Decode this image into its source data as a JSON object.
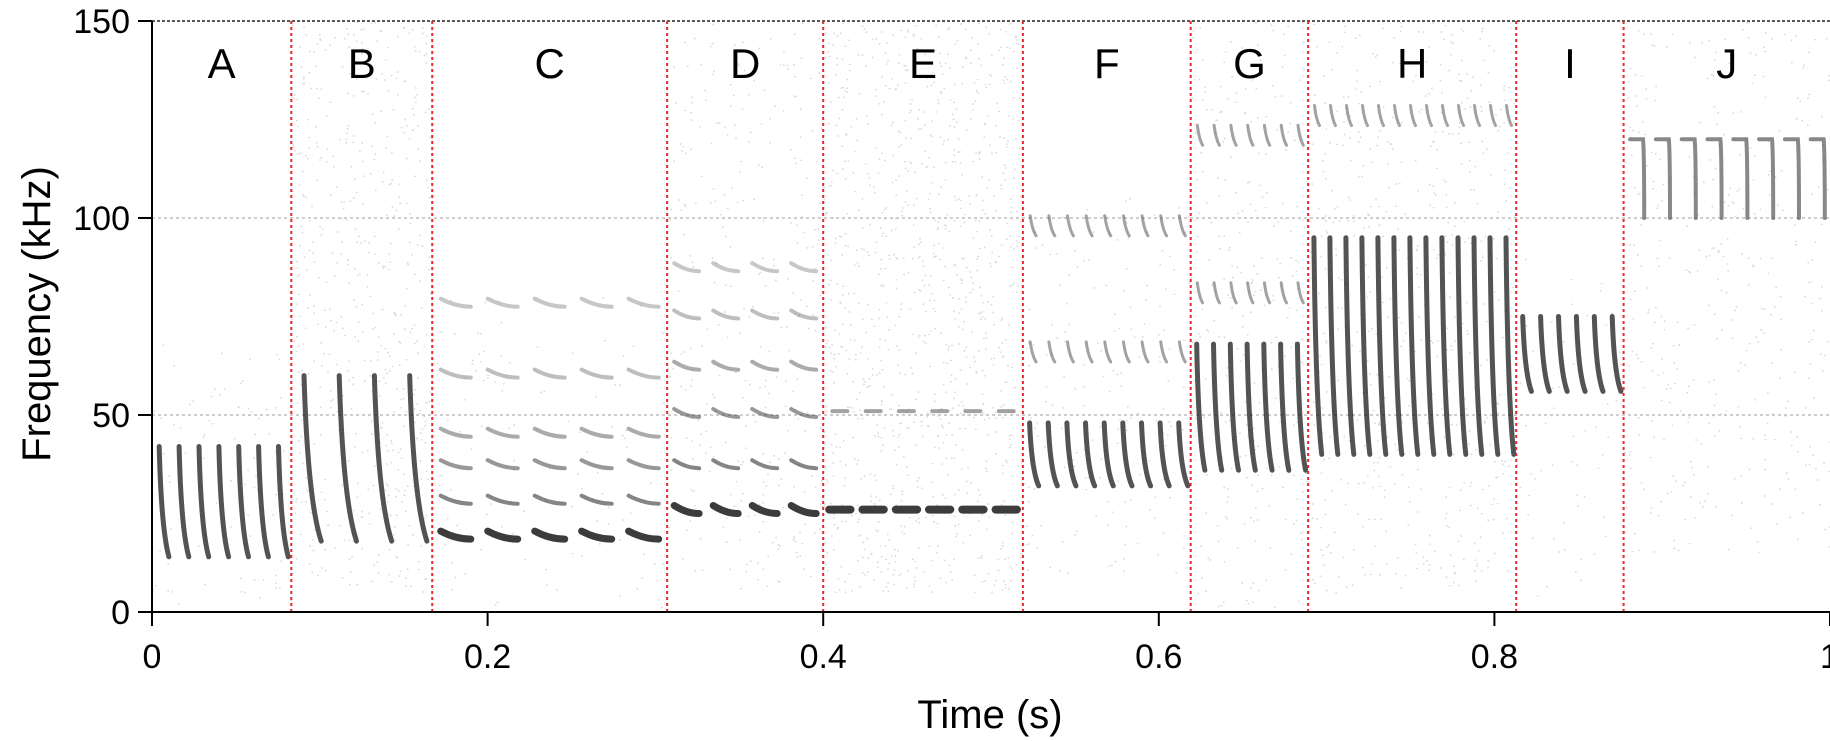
{
  "chart_data": {
    "type": "spectrogram",
    "xlabel": "Time (s)",
    "ylabel": "Frequency (kHz)",
    "xlim": [
      0,
      1
    ],
    "ylim": [
      0,
      150
    ],
    "x_ticks": [
      0,
      0.2,
      0.4,
      0.6,
      0.8,
      1
    ],
    "x_tick_labels": [
      "0",
      "0.2",
      "0.4",
      "0.6",
      "0.8",
      "1"
    ],
    "y_ticks": [
      0,
      50,
      100,
      150
    ],
    "y_tick_labels": [
      "0",
      "50",
      "100",
      "150"
    ],
    "grid_y": [
      50,
      100
    ],
    "colors": {
      "boundary": "#e8262b",
      "grid": "#bdbdbd",
      "ink": "#1a1a1a"
    },
    "segments": [
      {
        "label": "A",
        "start": 0.0,
        "end": 0.083,
        "syllables": 7,
        "f_low": 14,
        "f_high": 42,
        "mode": "fm-down",
        "harmonics": [],
        "noise": {
          "lo": 0,
          "hi": 68,
          "density": 0.05
        }
      },
      {
        "label": "B",
        "start": 0.083,
        "end": 0.167,
        "syllables": 4,
        "f_low": 18,
        "f_high": 60,
        "mode": "fm-down",
        "harmonics": [],
        "noise": {
          "lo": 5,
          "hi": 150,
          "density": 0.14
        }
      },
      {
        "label": "C",
        "start": 0.167,
        "end": 0.307,
        "syllables": 5,
        "f_low": 16,
        "f_high": 22,
        "mode": "stacked",
        "harmonics": [
          28,
          37,
          45,
          60,
          78
        ],
        "noise": {
          "lo": 0,
          "hi": 80,
          "density": 0.03
        }
      },
      {
        "label": "D",
        "start": 0.307,
        "end": 0.4,
        "syllables": 4,
        "f_low": 24,
        "f_high": 27,
        "mode": "stacked",
        "harmonics": [
          37,
          50,
          62,
          75,
          87
        ],
        "noise": {
          "lo": 5,
          "hi": 150,
          "density": 0.07
        }
      },
      {
        "label": "E",
        "start": 0.4,
        "end": 0.519,
        "syllables": 6,
        "f_low": 24,
        "f_high": 28,
        "mode": "flat",
        "harmonics": [
          51
        ],
        "noise": {
          "lo": 5,
          "hi": 150,
          "density": 0.18
        }
      },
      {
        "label": "F",
        "start": 0.519,
        "end": 0.619,
        "syllables": 9,
        "f_low": 32,
        "f_high": 48,
        "mode": "fm-down",
        "harmonics": [
          65,
          97
        ],
        "noise": {
          "lo": 10,
          "hi": 105,
          "density": 0.06
        }
      },
      {
        "label": "G",
        "start": 0.619,
        "end": 0.689,
        "syllables": 7,
        "f_low": 36,
        "f_high": 68,
        "mode": "fm-down",
        "harmonics": [
          80,
          120
        ],
        "noise": {
          "lo": 0,
          "hi": 150,
          "density": 0.08
        }
      },
      {
        "label": "H",
        "start": 0.689,
        "end": 0.813,
        "syllables": 13,
        "f_low": 40,
        "f_high": 95,
        "mode": "fm-down",
        "harmonics": [
          125
        ],
        "noise": {
          "lo": 5,
          "hi": 150,
          "density": 0.1
        }
      },
      {
        "label": "I",
        "start": 0.813,
        "end": 0.877,
        "syllables": 6,
        "f_low": 56,
        "f_high": 75,
        "mode": "fm-down",
        "harmonics": [],
        "noise": {
          "lo": 0,
          "hi": 90,
          "density": 0.03
        }
      },
      {
        "label": "J",
        "start": 0.877,
        "end": 1.0,
        "syllables": 8,
        "f_low": 100,
        "f_high": 120,
        "mode": "hook",
        "harmonics": [],
        "noise": {
          "lo": 15,
          "hi": 150,
          "density": 0.07
        }
      }
    ]
  }
}
